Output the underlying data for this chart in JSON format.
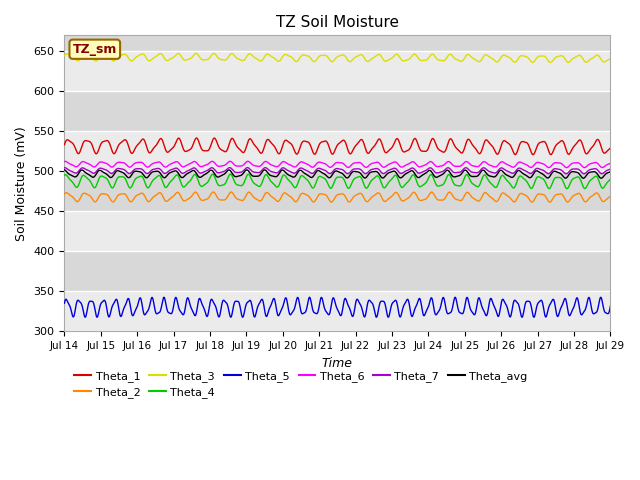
{
  "title": "TZ Soil Moisture",
  "xlabel": "Time",
  "ylabel": "Soil Moisture (mV)",
  "ylim": [
    300,
    670
  ],
  "xlim": [
    0,
    360
  ],
  "ytick_vals": [
    300,
    350,
    400,
    450,
    500,
    550,
    600,
    650
  ],
  "xtick_labels": [
    "Jul 14",
    "Jul 15",
    "Jul 16",
    "Jul 17",
    "Jul 18",
    "Jul 19",
    "Jul 20",
    "Jul 21",
    "Jul 22",
    "Jul 23",
    "Jul 24",
    "Jul 25",
    "Jul 26",
    "Jul 27",
    "Jul 28",
    "Jul 29"
  ],
  "band_light": "#ebebeb",
  "band_dark": "#d8d8d8",
  "series": [
    {
      "name": "Theta_1",
      "color": "#dd0000",
      "mean": 532,
      "amp": 8,
      "freq": 12,
      "phase": 0.0,
      "trend": -0.004
    },
    {
      "name": "Theta_2",
      "color": "#ff8800",
      "mean": 468,
      "amp": 5,
      "freq": 12,
      "phase": 0.5,
      "trend": -0.001
    },
    {
      "name": "Theta_3",
      "color": "#dddd00",
      "mean": 643,
      "amp": 4,
      "freq": 12,
      "phase": 0.2,
      "trend": -0.006
    },
    {
      "name": "Theta_4",
      "color": "#00cc00",
      "mean": 488,
      "amp": 7,
      "freq": 12,
      "phase": 0.8,
      "trend": -0.003
    },
    {
      "name": "Theta_5",
      "color": "#0000dd",
      "mean": 330,
      "amp": 10,
      "freq": 8,
      "phase": 0.3,
      "trend": 0.0
    },
    {
      "name": "Theta_6",
      "color": "#ff00ff",
      "mean": 509,
      "amp": 3,
      "freq": 12,
      "phase": 1.0,
      "trend": -0.002
    },
    {
      "name": "Theta_7",
      "color": "#aa00cc",
      "mean": 501,
      "amp": 3,
      "freq": 12,
      "phase": 1.2,
      "trend": -0.001
    },
    {
      "name": "Theta_avg",
      "color": "#000000",
      "mean": 497,
      "amp": 4,
      "freq": 12,
      "phase": 1.5,
      "trend": -0.002
    }
  ],
  "legend_row1": [
    "Theta_1",
    "Theta_2",
    "Theta_3",
    "Theta_4",
    "Theta_5",
    "Theta_6"
  ],
  "legend_row2": [
    "Theta_7",
    "Theta_avg"
  ],
  "label_box_text": "TZ_sm",
  "label_box_facecolor": "#ffffbb",
  "label_box_edgecolor": "#996600"
}
